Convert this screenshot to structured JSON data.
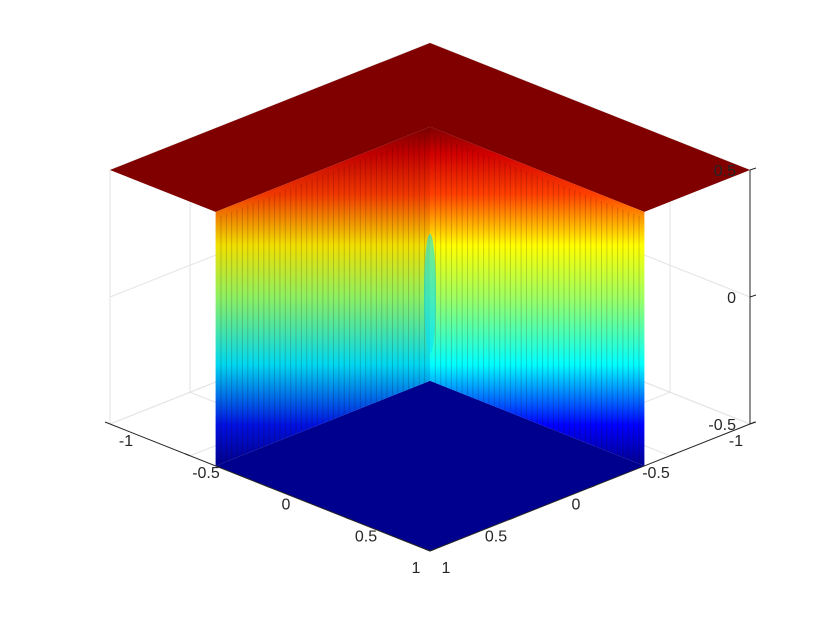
{
  "chart_data": {
    "type": "surface",
    "colormap": "jet",
    "x_ticks": [
      "-1",
      "-0.5",
      "0",
      "0.5",
      "1"
    ],
    "y_ticks": [
      "-1",
      "-0.5",
      "0",
      "0.5",
      "1"
    ],
    "z_ticks": [
      "-0.5",
      "0",
      "0.5"
    ],
    "xlim": [
      -1,
      1
    ],
    "ylim": [
      -1,
      1
    ],
    "zlim": [
      -0.5,
      0.5
    ],
    "grid": true,
    "surface": {
      "description_levels": [
        -0.5,
        0.5
      ],
      "region_high_z": 0.5,
      "region_low_z": -0.5,
      "transition_count": 40
    },
    "colors": {
      "high": "#800000",
      "low": "#00008f"
    }
  }
}
